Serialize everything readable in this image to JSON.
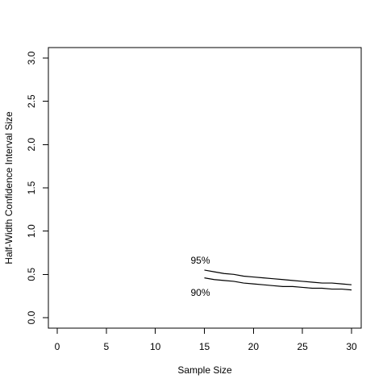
{
  "chart_data": {
    "type": "line",
    "title": "",
    "xlabel": "Sample Size",
    "ylabel": "Half-Width Confidence Interval Size",
    "xlim": [
      0,
      30
    ],
    "ylim": [
      0,
      3.0
    ],
    "x_ticks": [
      0,
      5,
      10,
      15,
      20,
      25,
      30
    ],
    "y_ticks": [
      0.0,
      0.5,
      1.0,
      1.5,
      2.0,
      2.5,
      3.0
    ],
    "x_tick_labels": [
      "0",
      "5",
      "10",
      "15",
      "20",
      "25",
      "30"
    ],
    "y_tick_labels": [
      "0.0",
      "0.5",
      "1.0",
      "1.5",
      "2.0",
      "2.5",
      "3.0"
    ],
    "grid": false,
    "legend": "none",
    "x": [
      15,
      16,
      17,
      18,
      19,
      20,
      21,
      22,
      23,
      24,
      25,
      26,
      27,
      28,
      29,
      30
    ],
    "series": [
      {
        "label": "95%",
        "label_at": [
          15,
          0.66
        ],
        "values": [
          0.55,
          0.53,
          0.51,
          0.5,
          0.48,
          0.47,
          0.46,
          0.45,
          0.44,
          0.43,
          0.42,
          0.41,
          0.4,
          0.4,
          0.39,
          0.38
        ]
      },
      {
        "label": "90%",
        "label_at": [
          15,
          0.29
        ],
        "values": [
          0.46,
          0.44,
          0.43,
          0.42,
          0.4,
          0.39,
          0.38,
          0.37,
          0.36,
          0.36,
          0.35,
          0.34,
          0.34,
          0.33,
          0.33,
          0.32
        ]
      }
    ]
  }
}
